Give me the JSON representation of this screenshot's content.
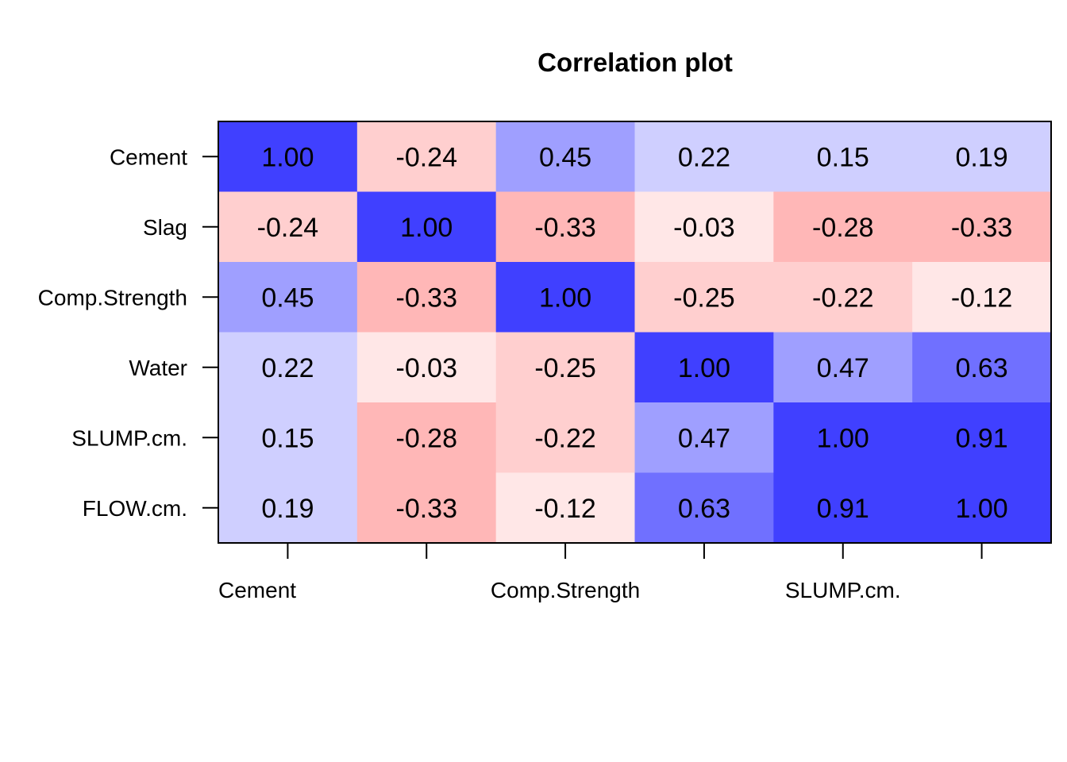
{
  "chart_data": {
    "type": "heatmap",
    "title": "Correlation plot",
    "xlabel": "",
    "ylabel": "",
    "row_labels": [
      "Cement",
      "Slag",
      "Comp.Strength",
      "Water",
      "SLUMP.cm.",
      "FLOW.cm."
    ],
    "x_tick_labels_shown": [
      "Cement",
      "",
      "Comp.Strength",
      "",
      "SLUMP.cm.",
      ""
    ],
    "values": [
      [
        1.0,
        -0.24,
        0.45,
        0.22,
        0.15,
        0.19
      ],
      [
        -0.24,
        1.0,
        -0.33,
        -0.03,
        -0.28,
        -0.33
      ],
      [
        0.45,
        -0.33,
        1.0,
        -0.25,
        -0.22,
        -0.12
      ],
      [
        0.22,
        -0.03,
        -0.25,
        1.0,
        0.47,
        0.63
      ],
      [
        0.15,
        -0.28,
        -0.22,
        0.47,
        1.0,
        0.91
      ],
      [
        0.19,
        -0.33,
        -0.12,
        0.63,
        0.91,
        1.0
      ]
    ],
    "value_labels": [
      [
        "1.00",
        "-0.24",
        "0.45",
        "0.22",
        "0.15",
        "0.19"
      ],
      [
        "-0.24",
        "1.00",
        "-0.33",
        "-0.03",
        "-0.28",
        "-0.33"
      ],
      [
        "0.45",
        "-0.33",
        "1.00",
        "-0.25",
        "-0.22",
        "-0.12"
      ],
      [
        "0.22",
        "-0.03",
        "-0.25",
        "1.00",
        "0.47",
        "0.63"
      ],
      [
        "0.15",
        "-0.28",
        "-0.22",
        "0.47",
        "1.00",
        "0.91"
      ],
      [
        "0.19",
        "-0.33",
        "-0.12",
        "0.63",
        "0.91",
        "1.00"
      ]
    ],
    "color_scale": {
      "negative": "#ff0000",
      "zero": "#ffffff",
      "positive": "#0000ff",
      "min": -1,
      "max": 1
    },
    "grid": false
  }
}
